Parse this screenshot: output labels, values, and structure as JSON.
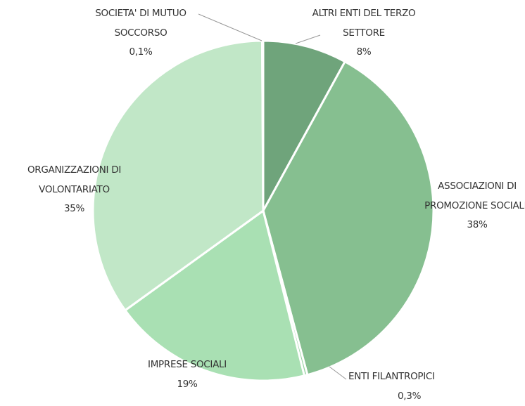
{
  "chart_data": {
    "type": "pie",
    "categories": [
      "ALTRI ENTI DEL TERZO SETTORE",
      "ASSOCIAZIONI DI PROMOZIONE SOCIALE",
      "ENTI FILANTROPICI",
      "IMPRESE SOCIALI",
      "ORGANIZZAZIONI DI VOLONTARIATO",
      "SOCIETA' DI MUTUO SOCCORSO"
    ],
    "values": [
      8,
      38,
      0.3,
      19,
      35,
      0.1
    ],
    "value_labels": [
      "8%",
      "38%",
      "0,3%",
      "19%",
      "35%",
      "0,1%"
    ],
    "colors": [
      "#6fa47b",
      "#86bf90",
      "#98d2a1",
      "#a9e0b3",
      "#c1e7c7",
      "#b5e3bd"
    ]
  }
}
